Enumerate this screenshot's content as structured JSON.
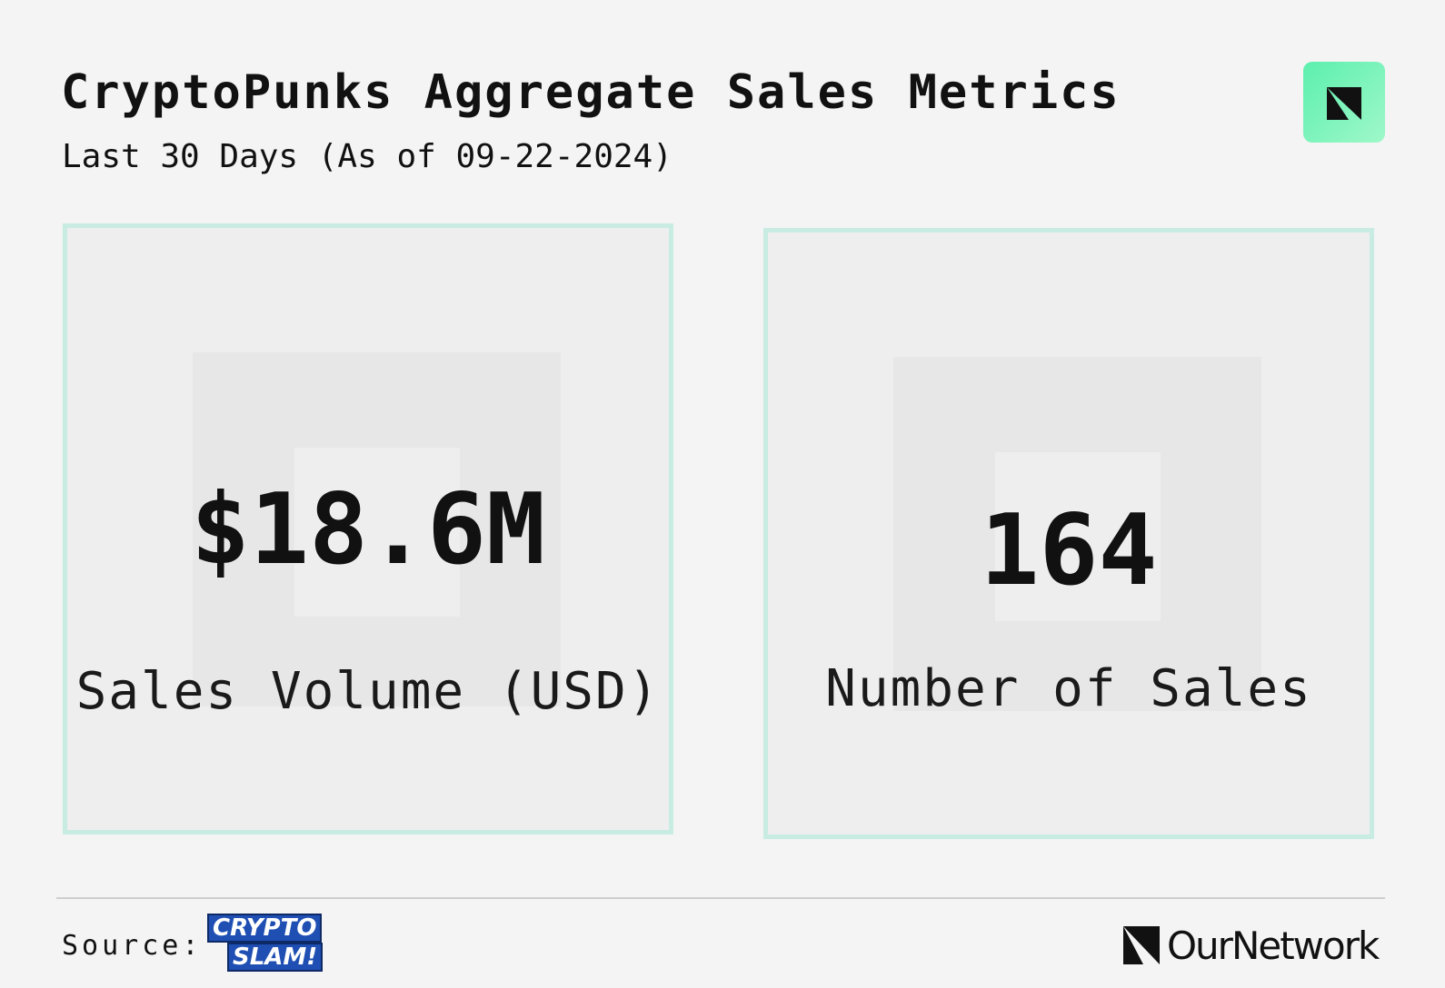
{
  "header": {
    "title": "CryptoPunks Aggregate Sales Metrics",
    "subtitle": "Last 30 Days (As of 09-22-2024)"
  },
  "cards": [
    {
      "value": "$18.6M",
      "label": "Sales Volume (USD)"
    },
    {
      "value": "164",
      "label": "Number of Sales"
    }
  ],
  "footer": {
    "source_label": "Source:",
    "source_logo": [
      "CRYPTO",
      "SLAM!"
    ],
    "brand": "OurNetwork"
  }
}
